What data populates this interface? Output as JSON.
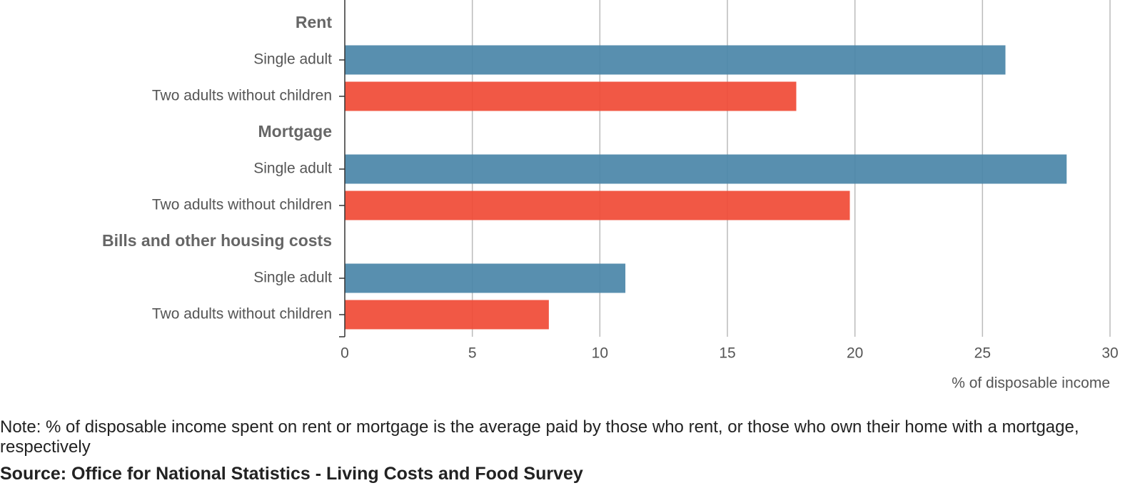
{
  "chart_data": {
    "type": "bar",
    "orientation": "horizontal",
    "groups": [
      {
        "name": "Rent",
        "bars": [
          {
            "category": "Single adult",
            "value": 25.9,
            "color": "#4a85a8"
          },
          {
            "category": "Two adults without children",
            "value": 17.7,
            "color": "#f04a35"
          }
        ]
      },
      {
        "name": "Mortgage",
        "bars": [
          {
            "category": "Single adult",
            "value": 28.3,
            "color": "#4a85a8"
          },
          {
            "category": "Two adults without children",
            "value": 19.8,
            "color": "#f04a35"
          }
        ]
      },
      {
        "name": "Bills and other housing costs",
        "bars": [
          {
            "category": "Single adult",
            "value": 11.0,
            "color": "#4a85a8"
          },
          {
            "category": "Two adults without children",
            "value": 8.0,
            "color": "#f04a35"
          }
        ]
      }
    ],
    "xlim": [
      0,
      30
    ],
    "xticks": [
      "0",
      "5",
      "10",
      "15",
      "20",
      "25",
      "30"
    ],
    "xlabel": "% of disposable income",
    "grid": true,
    "grid_color": "#bbbbbb"
  },
  "note": "Note: % of disposable income spent on rent or mortgage is the average paid by those who rent, or those who own their home with a mortgage, respectively",
  "source": "Source: Office for National Statistics - Living Costs and Food Survey"
}
